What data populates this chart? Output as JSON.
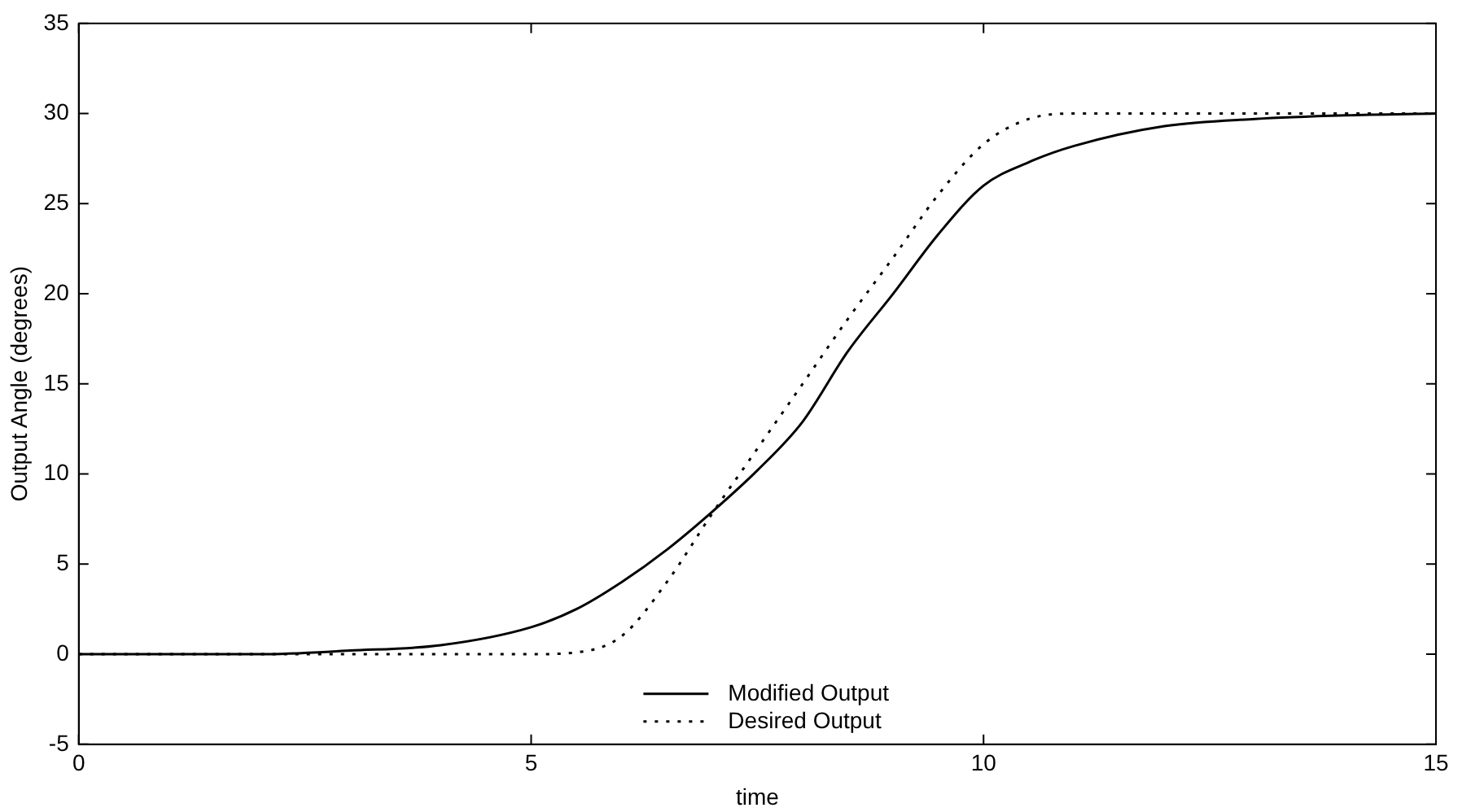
{
  "chart_data": {
    "type": "line",
    "xlabel": "time",
    "ylabel": "Output Angle (degrees)",
    "xlim": [
      0,
      15
    ],
    "ylim": [
      -5,
      35
    ],
    "xticks": [
      0,
      5,
      10,
      15
    ],
    "yticks": [
      -5,
      0,
      5,
      10,
      15,
      20,
      25,
      30,
      35
    ],
    "grid": false,
    "legend": "bottom",
    "marker": "none",
    "series": [
      {
        "name": "Modified Output",
        "color": "#000000",
        "line_style": "solid",
        "x": [
          0,
          1,
          2,
          3,
          4,
          5,
          5.5,
          6,
          6.5,
          7,
          7.5,
          8,
          8.5,
          9,
          9.5,
          10,
          10.5,
          11,
          12,
          13,
          14,
          15
        ],
        "values": [
          0,
          0,
          0,
          0.2,
          0.5,
          1.5,
          2.5,
          4,
          5.8,
          7.9,
          10.2,
          12.9,
          16.8,
          20,
          23.3,
          26,
          27.3,
          28.2,
          29.3,
          29.7,
          29.9,
          30
        ]
      },
      {
        "name": "Desired Output",
        "color": "#000000",
        "line_style": "dotted",
        "x": [
          0,
          1,
          2,
          3,
          4,
          5,
          5.5,
          6,
          6.5,
          7,
          7.5,
          8,
          8.5,
          9,
          9.5,
          10,
          10.5,
          11,
          12,
          13,
          14,
          15
        ],
        "values": [
          0,
          0,
          0,
          0,
          0,
          0,
          0.1,
          1,
          4,
          7.8,
          11.4,
          15,
          18.6,
          22,
          25.5,
          28.3,
          29.7,
          30,
          30,
          30,
          30,
          30
        ]
      }
    ]
  }
}
